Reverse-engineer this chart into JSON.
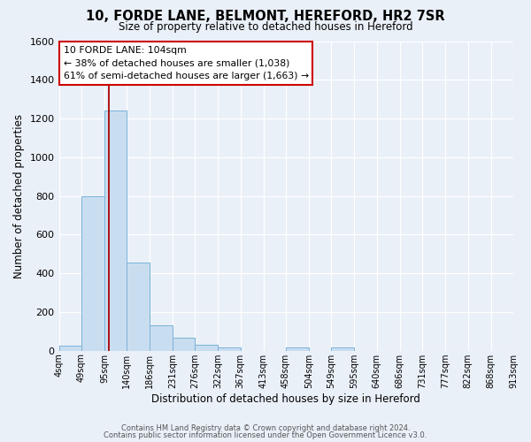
{
  "title": "10, FORDE LANE, BELMONT, HEREFORD, HR2 7SR",
  "subtitle": "Size of property relative to detached houses in Hereford",
  "xlabel": "Distribution of detached houses by size in Hereford",
  "ylabel": "Number of detached properties",
  "bin_edges": [
    4,
    49,
    95,
    140,
    186,
    231,
    276,
    322,
    367,
    413,
    458,
    504,
    549,
    595,
    640,
    686,
    731,
    777,
    822,
    868,
    913
  ],
  "bin_labels": [
    "4sqm",
    "49sqm",
    "95sqm",
    "140sqm",
    "186sqm",
    "231sqm",
    "276sqm",
    "322sqm",
    "367sqm",
    "413sqm",
    "458sqm",
    "504sqm",
    "549sqm",
    "595sqm",
    "640sqm",
    "686sqm",
    "731sqm",
    "777sqm",
    "822sqm",
    "868sqm",
    "913sqm"
  ],
  "counts": [
    25,
    800,
    1240,
    455,
    130,
    65,
    30,
    15,
    0,
    0,
    15,
    0,
    15,
    0,
    0,
    0,
    0,
    0,
    0,
    0
  ],
  "bar_color": "#c9ddf0",
  "bar_edge_color": "#7ab3d9",
  "bar_edge_width": 0.7,
  "red_line_x": 104,
  "red_line_color": "#aa0000",
  "ylim": [
    0,
    1600
  ],
  "yticks": [
    0,
    200,
    400,
    600,
    800,
    1000,
    1200,
    1400,
    1600
  ],
  "annotation_lines": [
    "10 FORDE LANE: 104sqm",
    "← 38% of detached houses are smaller (1,038)",
    "61% of semi-detached houses are larger (1,663) →"
  ],
  "footer_line1": "Contains HM Land Registry data © Crown copyright and database right 2024.",
  "footer_line2": "Contains public sector information licensed under the Open Government Licence v3.0.",
  "bg_color": "#eaf0f8"
}
